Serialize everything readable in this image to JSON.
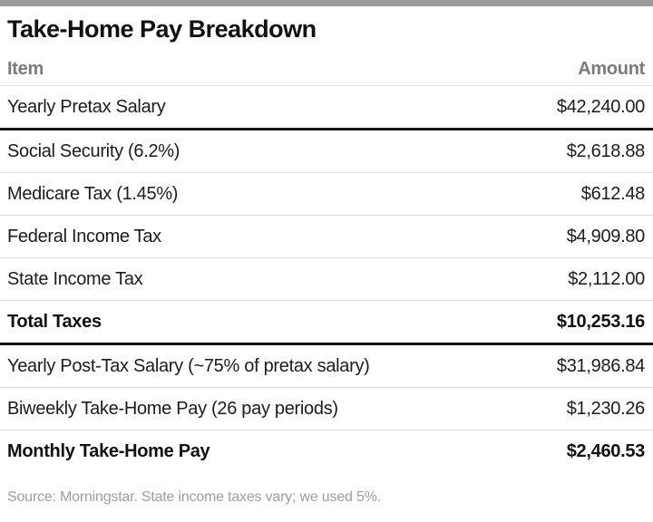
{
  "title": "Take-Home Pay Breakdown",
  "table": {
    "header": {
      "item": "Item",
      "amount": "Amount"
    },
    "rows": [
      {
        "item": "Yearly Pretax Salary",
        "amount": "$42,240.00"
      },
      {
        "item": "Social Security (6.2%)",
        "amount": "$2,618.88"
      },
      {
        "item": "Medicare Tax (1.45%)",
        "amount": "$612.48"
      },
      {
        "item": "Federal Income Tax",
        "amount": "$4,909.80"
      },
      {
        "item": "State Income Tax",
        "amount": "$2,112.00"
      },
      {
        "item": "Total Taxes",
        "amount": "$10,253.16"
      },
      {
        "item": "Yearly Post-Tax Salary (~75% of pretax salary)",
        "amount": "$31,986.84"
      },
      {
        "item": "Biweekly Take-Home Pay (26 pay periods)",
        "amount": "$1,230.26"
      },
      {
        "item": "Monthly Take-Home Pay",
        "amount": "$2,460.53"
      }
    ]
  },
  "footer": {
    "source": "Source: Morningstar. State income taxes vary; we used 5%."
  },
  "colors": {
    "top_bar": "#9a9a9a",
    "title_text": "#111111",
    "header_text": "#7b7b7d",
    "body_text": "#1c1c1c",
    "light_rule": "#e0e0e0",
    "dark_rule": "#141414",
    "footer_text": "#9e9e9e",
    "background": "#ffffff"
  },
  "chart_data": {
    "type": "table",
    "title": "Take-Home Pay Breakdown",
    "columns": [
      "Item",
      "Amount"
    ],
    "rows": [
      [
        "Yearly Pretax Salary",
        42240.0
      ],
      [
        "Social Security (6.2%)",
        2618.88
      ],
      [
        "Medicare Tax (1.45%)",
        612.48
      ],
      [
        "Federal Income Tax",
        4909.8
      ],
      [
        "State Income Tax",
        2112.0
      ],
      [
        "Total Taxes",
        10253.16
      ],
      [
        "Yearly Post-Tax Salary (~75% of pretax salary)",
        31986.84
      ],
      [
        "Biweekly Take-Home Pay (26 pay periods)",
        1230.26
      ],
      [
        "Monthly Take-Home Pay",
        2460.53
      ]
    ],
    "bold_rows": [
      5,
      8
    ],
    "dark_rule_after_rows": [
      0,
      5
    ],
    "source": "Source: Morningstar. State income taxes vary; we used 5%."
  }
}
